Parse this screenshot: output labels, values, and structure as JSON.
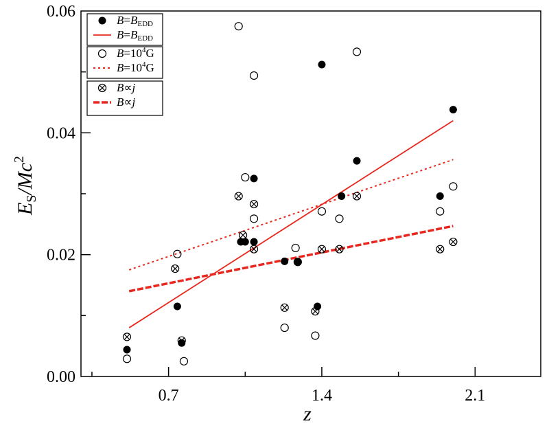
{
  "chart_data": {
    "type": "scatter",
    "xlabel": "z",
    "ylabel": "ES/Mc2",
    "xlim": [
      0.3,
      2.4
    ],
    "ylim": [
      0.0,
      0.06
    ],
    "xticks": [
      "0.7",
      "1.4",
      "2.1"
    ],
    "yticks": [
      "0.00",
      "0.02",
      "0.04",
      "0.06"
    ],
    "legend_placement": "top-left",
    "legend": [
      {
        "pre": "B",
        "post": "=",
        "base": "B",
        "sub": "EDD"
      },
      {
        "pre": "B",
        "post": "=",
        "base": "B",
        "sub": "EDD"
      },
      {
        "pre": "B",
        "post": "=10",
        "sup": "4",
        "tail": "G"
      },
      {
        "pre": "B",
        "post": "=10",
        "sup": "4",
        "tail": "G"
      },
      {
        "pre": "B",
        "post": "∝",
        "var": "j"
      },
      {
        "pre": "B",
        "post": "∝",
        "var": "j"
      }
    ],
    "series": [
      {
        "marker": "filled-circle",
        "color": "#000000",
        "points": [
          [
            0.51,
            0.0044
          ],
          [
            0.74,
            0.0115
          ],
          [
            0.76,
            0.0055
          ],
          [
            1.03,
            0.0221
          ],
          [
            1.05,
            0.0221
          ],
          [
            1.09,
            0.0325
          ],
          [
            1.09,
            0.0221
          ],
          [
            1.23,
            0.0189
          ],
          [
            1.29,
            0.0188
          ],
          [
            1.38,
            0.0115
          ],
          [
            1.4,
            0.0512
          ],
          [
            1.49,
            0.0296
          ],
          [
            1.56,
            0.0354
          ],
          [
            1.94,
            0.0296
          ],
          [
            2.0,
            0.0438
          ]
        ]
      },
      {
        "marker": "open-circle",
        "color": "#000000",
        "points": [
          [
            0.51,
            0.0029
          ],
          [
            0.74,
            0.0201
          ],
          [
            0.77,
            0.0025
          ],
          [
            1.02,
            0.0575
          ],
          [
            1.05,
            0.0327
          ],
          [
            1.09,
            0.0494
          ],
          [
            1.09,
            0.0259
          ],
          [
            1.23,
            0.008
          ],
          [
            1.28,
            0.0211
          ],
          [
            1.37,
            0.0067
          ],
          [
            1.4,
            0.0271
          ],
          [
            1.48,
            0.0259
          ],
          [
            1.56,
            0.0533
          ],
          [
            1.94,
            0.0271
          ],
          [
            2.0,
            0.0312
          ]
        ]
      },
      {
        "marker": "crossed-circle",
        "color": "#000000",
        "points": [
          [
            0.51,
            0.0065
          ],
          [
            0.73,
            0.0177
          ],
          [
            0.76,
            0.0059
          ],
          [
            1.02,
            0.0296
          ],
          [
            1.04,
            0.0232
          ],
          [
            1.09,
            0.0283
          ],
          [
            1.09,
            0.0209
          ],
          [
            1.23,
            0.0113
          ],
          [
            1.29,
            0.0188
          ],
          [
            1.37,
            0.0107
          ],
          [
            1.4,
            0.0209
          ],
          [
            1.48,
            0.0209
          ],
          [
            1.56,
            0.0296
          ],
          [
            1.94,
            0.0209
          ],
          [
            2.0,
            0.0221
          ]
        ]
      }
    ],
    "fit_lines": [
      {
        "style": "solid",
        "color": "#e8281e",
        "x": [
          0.52,
          2.0
        ],
        "y": [
          0.008,
          0.042
        ]
      },
      {
        "style": "dotted",
        "color": "#e8281e",
        "x": [
          0.52,
          2.0
        ],
        "y": [
          0.0175,
          0.0356
        ]
      },
      {
        "style": "dashed",
        "color": "#e8281e",
        "x": [
          0.52,
          2.0
        ],
        "y": [
          0.014,
          0.0247
        ]
      }
    ]
  }
}
